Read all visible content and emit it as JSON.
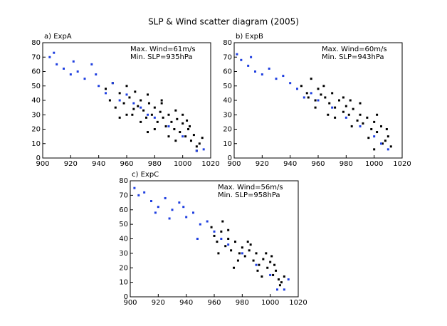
{
  "title": "SLP & Wind scatter diagram (2005)",
  "chart_data": [
    {
      "type": "scatter",
      "title": "a) ExpA",
      "annotations": [
        "Max. Wind=61m/s",
        "Min. SLP=935hPa"
      ],
      "xlim": [
        900,
        1020
      ],
      "xticks": [
        900,
        920,
        940,
        960,
        980,
        1000,
        1020
      ],
      "ylim": [
        0,
        80
      ],
      "yticks": [
        0,
        10,
        20,
        30,
        40,
        50,
        60,
        70,
        80
      ],
      "series": [
        {
          "color": "#000000",
          "x": [
            945,
            948,
            950,
            952,
            955,
            958,
            960,
            962,
            964,
            966,
            968,
            970,
            972,
            974,
            976,
            978,
            980,
            982,
            984,
            986,
            988,
            990,
            992,
            994,
            996,
            998,
            1000,
            1002,
            1004,
            1006,
            1008,
            1010,
            1012,
            1014,
            960,
            965,
            970,
            975,
            980,
            985,
            990,
            995,
            1000,
            1005,
            1010,
            955,
            975,
            985,
            995,
            1003
          ],
          "y": [
            48,
            40,
            52,
            35,
            45,
            38,
            50,
            42,
            30,
            46,
            36,
            40,
            33,
            28,
            38,
            30,
            35,
            25,
            32,
            28,
            22,
            30,
            25,
            20,
            27,
            18,
            24,
            15,
            20,
            12,
            16,
            8,
            10,
            14,
            30,
            34,
            25,
            44,
            20,
            38,
            15,
            33,
            30,
            22,
            5,
            28,
            18,
            40,
            12,
            26
          ]
        },
        {
          "color": "#1f3fe0",
          "x": [
            905,
            910,
            915,
            920,
            925,
            930,
            935,
            940,
            945,
            950,
            955,
            960,
            965,
            970,
            975,
            980,
            990,
            1000,
            1010,
            1015,
            908,
            922,
            938
          ],
          "y": [
            70,
            65,
            62,
            58,
            60,
            55,
            65,
            50,
            45,
            52,
            40,
            44,
            38,
            35,
            30,
            28,
            22,
            15,
            5,
            6,
            73,
            67,
            58
          ]
        }
      ]
    },
    {
      "type": "scatter",
      "title": "b) ExpB",
      "annotations": [
        "Max. Wind=60m/s",
        "Min. SLP=943hPa"
      ],
      "xlim": [
        900,
        1020
      ],
      "xticks": [
        900,
        920,
        940,
        960,
        980,
        1000,
        1020
      ],
      "ylim": [
        0,
        80
      ],
      "yticks": [
        0,
        10,
        20,
        30,
        40,
        50,
        60,
        70,
        80
      ],
      "series": [
        {
          "color": "#000000",
          "x": [
            948,
            952,
            955,
            958,
            960,
            962,
            965,
            968,
            970,
            972,
            975,
            978,
            980,
            982,
            985,
            988,
            990,
            992,
            995,
            998,
            1000,
            1002,
            1005,
            1008,
            1010,
            1012,
            958,
            964,
            972,
            978,
            984,
            990,
            996,
            1002,
            1006,
            1009,
            953,
            967,
            983,
            1000
          ],
          "y": [
            50,
            45,
            55,
            40,
            48,
            44,
            42,
            38,
            45,
            35,
            40,
            32,
            36,
            30,
            34,
            26,
            30,
            24,
            28,
            20,
            25,
            18,
            22,
            12,
            15,
            8,
            35,
            50,
            28,
            42,
            22,
            38,
            14,
            30,
            10,
            20,
            42,
            30,
            40,
            6
          ]
        },
        {
          "color": "#1f3fe0",
          "x": [
            902,
            905,
            910,
            915,
            920,
            925,
            930,
            940,
            945,
            950,
            955,
            960,
            970,
            980,
            990,
            1000,
            1005,
            1010,
            912,
            935
          ],
          "y": [
            72,
            68,
            64,
            60,
            58,
            62,
            55,
            52,
            48,
            42,
            45,
            40,
            35,
            28,
            22,
            15,
            10,
            6,
            70,
            57
          ]
        }
      ]
    },
    {
      "type": "scatter",
      "title": "c) ExpC",
      "annotations": [
        "Max. Wind=56m/s",
        "Min. SLP=958hPa"
      ],
      "xlim": [
        900,
        1020
      ],
      "xticks": [
        900,
        920,
        940,
        960,
        980,
        1000,
        1020
      ],
      "ylim": [
        0,
        80
      ],
      "yticks": [
        0,
        10,
        20,
        30,
        40,
        50,
        60,
        70,
        80
      ],
      "series": [
        {
          "color": "#000000",
          "x": [
            958,
            960,
            962,
            965,
            968,
            970,
            972,
            975,
            978,
            980,
            982,
            985,
            988,
            990,
            992,
            995,
            998,
            1000,
            1002,
            1004,
            1006,
            1008,
            1010,
            963,
            970,
            977,
            984,
            991,
            997,
            1003,
            1007,
            966,
            974,
            986,
            994,
            1001
          ],
          "y": [
            48,
            42,
            38,
            45,
            35,
            40,
            32,
            38,
            30,
            34,
            28,
            32,
            25,
            30,
            22,
            26,
            20,
            24,
            15,
            18,
            12,
            10,
            14,
            30,
            46,
            25,
            38,
            18,
            30,
            22,
            8,
            52,
            20,
            36,
            14,
            28
          ]
        },
        {
          "color": "#1f3fe0",
          "x": [
            903,
            906,
            910,
            915,
            920,
            925,
            930,
            935,
            940,
            945,
            950,
            955,
            960,
            965,
            970,
            980,
            990,
            1000,
            1005,
            1010,
            1013,
            918,
            928,
            938,
            948
          ],
          "y": [
            75,
            70,
            72,
            66,
            62,
            68,
            60,
            65,
            55,
            58,
            50,
            52,
            45,
            40,
            36,
            30,
            22,
            15,
            5,
            5,
            12,
            58,
            54,
            62,
            40
          ]
        }
      ]
    }
  ]
}
